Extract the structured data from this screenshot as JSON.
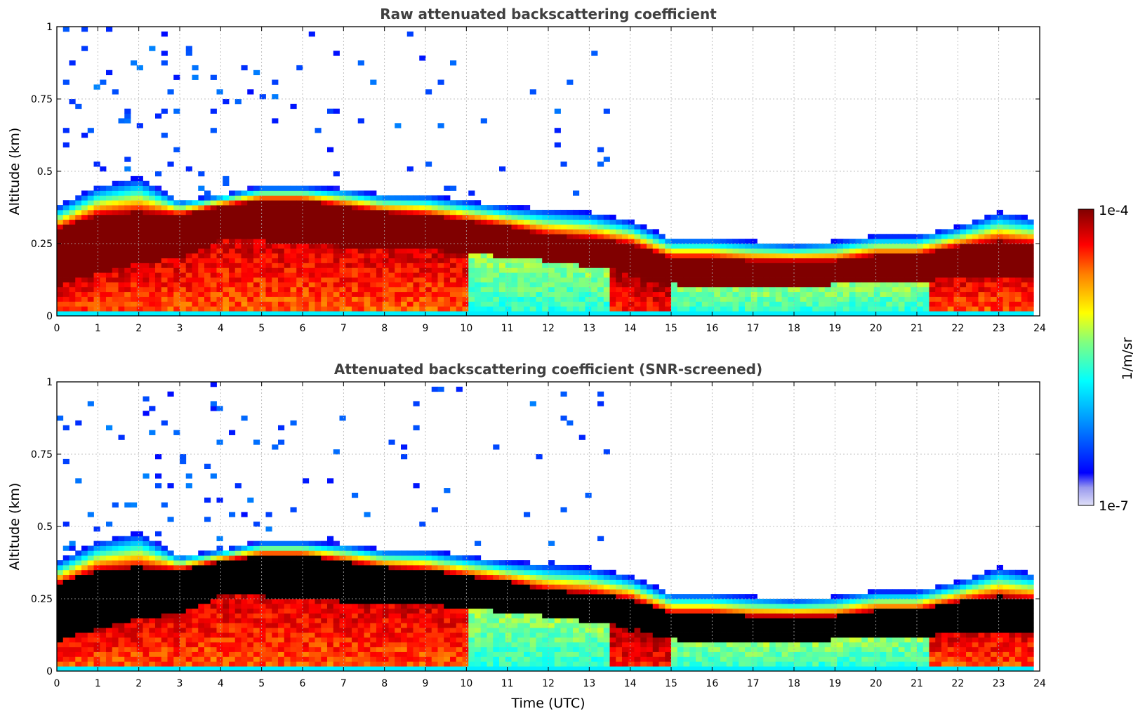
{
  "chart_data": [
    {
      "type": "heatmap",
      "title": "Raw attenuated backscattering coefficient",
      "xlabel": "",
      "ylabel": "Altitude (km)",
      "xlim": [
        0,
        24
      ],
      "ylim": [
        0,
        1
      ],
      "xticks": [
        "0",
        "1",
        "2",
        "3",
        "4",
        "5",
        "6",
        "7",
        "8",
        "9",
        "10",
        "11",
        "12",
        "13",
        "14",
        "15",
        "16",
        "17",
        "18",
        "19",
        "20",
        "21",
        "22",
        "23",
        "24"
      ],
      "yticks": [
        "0",
        "0.25",
        "0.5",
        "0.75",
        "1"
      ],
      "grid": true,
      "screened": false,
      "layer_time_utc": [
        0,
        1,
        2,
        3,
        4,
        5,
        6,
        7,
        8,
        9,
        10,
        11,
        12,
        13,
        14,
        15,
        16,
        17,
        18,
        19,
        20,
        21,
        22,
        23,
        23.8
      ],
      "layer_top_km": [
        0.38,
        0.45,
        0.48,
        0.4,
        0.42,
        0.45,
        0.45,
        0.44,
        0.42,
        0.42,
        0.4,
        0.38,
        0.37,
        0.36,
        0.33,
        0.27,
        0.27,
        0.26,
        0.25,
        0.26,
        0.28,
        0.28,
        0.31,
        0.36,
        0.34
      ],
      "max_core_top_km": [
        0.3,
        0.35,
        0.36,
        0.35,
        0.38,
        0.4,
        0.4,
        0.38,
        0.36,
        0.35,
        0.33,
        0.31,
        0.28,
        0.27,
        0.25,
        0.2,
        0.2,
        0.19,
        0.19,
        0.19,
        0.21,
        0.21,
        0.24,
        0.26,
        0.25
      ],
      "max_core_bottom_km": [
        0.1,
        0.15,
        0.18,
        0.2,
        0.26,
        0.26,
        0.25,
        0.24,
        0.24,
        0.23,
        0.22,
        0.2,
        0.19,
        0.17,
        0.15,
        0.11,
        0.1,
        0.1,
        0.1,
        0.11,
        0.12,
        0.12,
        0.13,
        0.14,
        0.14
      ]
    },
    {
      "type": "heatmap",
      "title": "Attenuated backscattering coefficient (SNR-screened)",
      "xlabel": "Time (UTC)",
      "ylabel": "Altitude (km)",
      "xlim": [
        0,
        24
      ],
      "ylim": [
        0,
        1
      ],
      "xticks": [
        "0",
        "1",
        "2",
        "3",
        "4",
        "5",
        "6",
        "7",
        "8",
        "9",
        "10",
        "11",
        "12",
        "13",
        "14",
        "15",
        "16",
        "17",
        "18",
        "19",
        "20",
        "21",
        "22",
        "23",
        "24"
      ],
      "yticks": [
        "0",
        "0.25",
        "0.5",
        "0.75",
        "1"
      ],
      "grid": true,
      "screened": true
    }
  ],
  "colorbar": {
    "label": "1/m/sr",
    "max_label": "1e-4",
    "min_label": "1e-7",
    "scale": "log",
    "colormap": "jet",
    "min_color": "#e0e0f8",
    "max_color": "#800000"
  }
}
